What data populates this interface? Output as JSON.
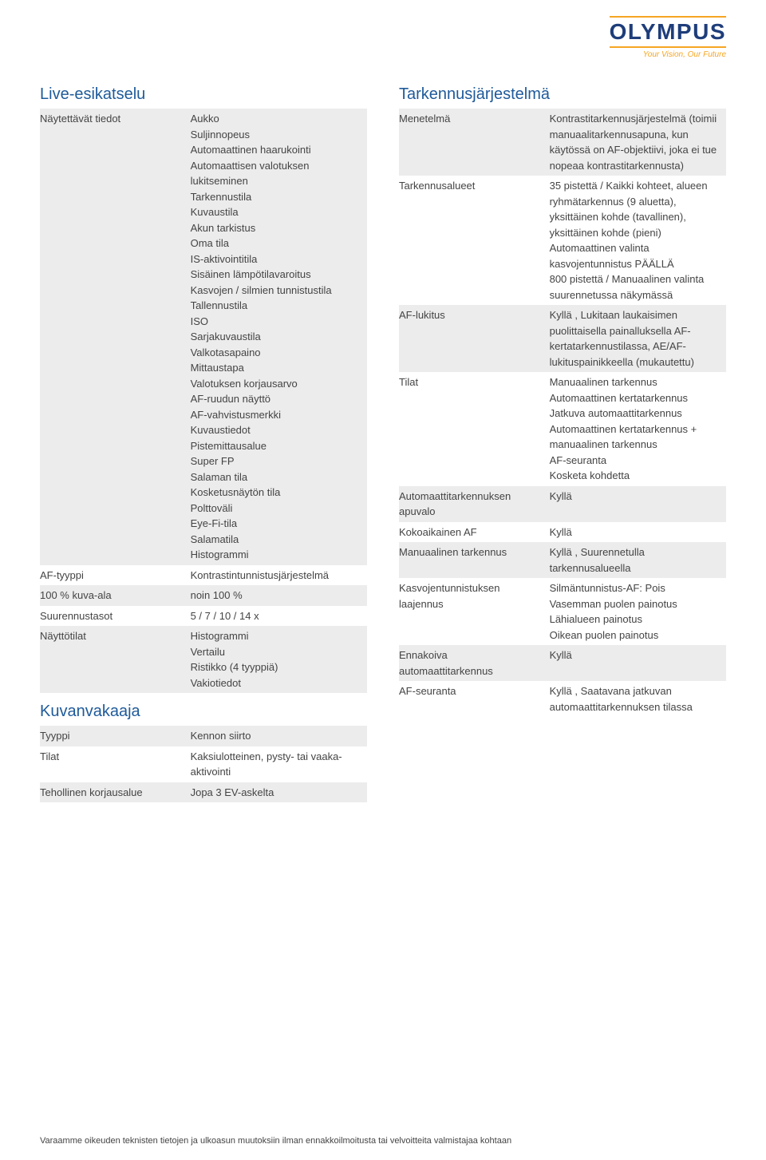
{
  "brand": {
    "logo": "OLYMPUS",
    "tagline": "Your Vision, Our Future"
  },
  "left": {
    "section1": {
      "title": "Live-esikatselu",
      "rows": [
        {
          "label": "Näytettävät tiedot",
          "value": "Aukko\nSuljinnopeus\nAutomaattinen haarukointi\nAutomaattisen valotuksen lukitseminen\nTarkennustila\nKuvaustila\nAkun tarkistus\nOma tila\nIS-aktivointitila\nSisäinen lämpötilavaroitus\nKasvojen / silmien tunnistustila\nTallennustila\nISO\nSarjakuvaustila\nValkotasapaino\nMittaustapa\nValotuksen korjausarvo\nAF-ruudun näyttö\nAF-vahvistusmerkki\nKuvaustiedot\nPistemittausalue\nSuper FP\nSalaman tila\nKosketusnäytön tila\nPolttoväli\nEye-Fi-tila\nSalamatila\nHistogrammi",
          "shaded": true
        },
        {
          "label": "AF-tyyppi",
          "value": "Kontrastintunnistusjärjestelmä",
          "shaded": false
        },
        {
          "label": "100 % kuva-ala",
          "value": "noin 100 %",
          "shaded": true
        },
        {
          "label": "Suurennustasot",
          "value": "5 / 7 / 10 / 14 x",
          "shaded": false
        },
        {
          "label": "Näyttötilat",
          "value": "Histogrammi\nVertailu\nRistikko (4 tyyppiä)\nVakiotiedot",
          "shaded": true
        }
      ]
    },
    "section2": {
      "title": "Kuvanvakaaja",
      "rows": [
        {
          "label": "Tyyppi",
          "value": "Kennon siirto",
          "shaded": true
        },
        {
          "label": "Tilat",
          "value": "Kaksiulotteinen, pysty- tai vaaka-aktivointi",
          "shaded": false
        },
        {
          "label": "Tehollinen korjausalue",
          "value": "Jopa 3 EV-askelta",
          "shaded": true
        }
      ]
    }
  },
  "right": {
    "section1": {
      "title": "Tarkennusjärjestelmä",
      "rows": [
        {
          "label": "Menetelmä",
          "value": "Kontrastitarkennusjärjestelmä (toimii manuaalitarkennusapuna, kun käytössä on AF-objektiivi, joka ei tue nopeaa kontrastitarkennusta)",
          "shaded": true
        },
        {
          "label": "Tarkennusalueet",
          "value": "35 pistettä / Kaikki kohteet, alueen ryhmätarkennus (9 aluetta), yksittäinen kohde (tavallinen), yksittäinen kohde (pieni)\nAutomaattinen valinta kasvojentunnistus PÄÄLLÄ\n800 pistettä / Manuaalinen valinta suurennetussa näkymässä",
          "shaded": false
        },
        {
          "label": "AF-lukitus",
          "value": "Kyllä , Lukitaan laukaisimen puolittaisella painalluksella AF-kertatarkennustilassa, AE/AF-lukituspainikkeella (mukautettu)",
          "shaded": true
        },
        {
          "label": "Tilat",
          "value": "Manuaalinen tarkennus\nAutomaattinen kertatarkennus\nJatkuva automaattitarkennus\nAutomaattinen kertatarkennus + manuaalinen tarkennus\nAF-seuranta\nKosketa kohdetta",
          "shaded": false
        },
        {
          "label": "Automaattitarkennuksen apuvalo",
          "value": "Kyllä",
          "shaded": true
        },
        {
          "label": "Kokoaikainen AF",
          "value": "Kyllä",
          "shaded": false
        },
        {
          "label": "Manuaalinen tarkennus",
          "value": "Kyllä , Suurennetulla tarkennusalueella",
          "shaded": true
        },
        {
          "label": "Kasvojentunnistuksen laajennus",
          "value": "Silmäntunnistus-AF: Pois\nVasemman puolen painotus\nLähialueen painotus\nOikean puolen painotus",
          "shaded": false
        },
        {
          "label": "Ennakoiva automaattitarkennus",
          "value": "Kyllä",
          "shaded": true
        },
        {
          "label": "AF-seuranta",
          "value": "Kyllä , Saatavana jatkuvan automaattitarkennuksen tilassa",
          "shaded": false
        }
      ]
    }
  },
  "footer": "Varaamme oikeuden teknisten tietojen ja ulkoasun muutoksiin ilman ennakkoilmoitusta tai velvoitteita valmistajaa kohtaan"
}
